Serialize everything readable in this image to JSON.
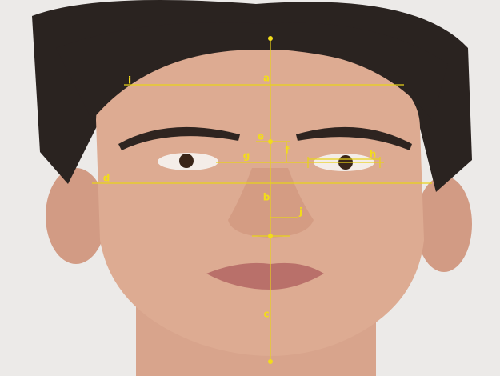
{
  "labels": [
    "a",
    "b",
    "c",
    "d",
    "e",
    "f",
    "g",
    "h",
    "i",
    "j"
  ]
}
